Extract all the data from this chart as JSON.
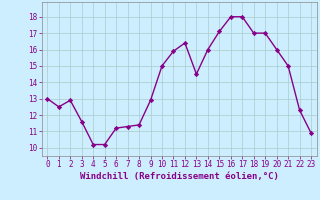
{
  "x": [
    0,
    1,
    2,
    3,
    4,
    5,
    6,
    7,
    8,
    9,
    10,
    11,
    12,
    13,
    14,
    15,
    16,
    17,
    18,
    19,
    20,
    21,
    22,
    23
  ],
  "y": [
    13,
    12.5,
    12.9,
    11.6,
    10.2,
    10.2,
    11.2,
    11.3,
    11.4,
    12.9,
    15.0,
    15.9,
    16.4,
    14.5,
    16.0,
    17.1,
    18.0,
    18.0,
    17.0,
    17.0,
    16.0,
    15.0,
    12.3,
    10.9
  ],
  "line_color": "#880088",
  "marker": "D",
  "marker_size": 2.2,
  "background_color": "#cceeff",
  "grid_color": "#aacccc",
  "xlabel": "Windchill (Refroidissement éolien,°C)",
  "xlim": [
    -0.5,
    23.5
  ],
  "ylim": [
    9.5,
    18.9
  ],
  "yticks": [
    10,
    11,
    12,
    13,
    14,
    15,
    16,
    17,
    18
  ],
  "xticks": [
    0,
    1,
    2,
    3,
    4,
    5,
    6,
    7,
    8,
    9,
    10,
    11,
    12,
    13,
    14,
    15,
    16,
    17,
    18,
    19,
    20,
    21,
    22,
    23
  ],
  "tick_color": "#880088",
  "tick_fontsize": 5.5,
  "xlabel_fontsize": 6.5,
  "line_width": 1.0,
  "spine_color": "#888888"
}
